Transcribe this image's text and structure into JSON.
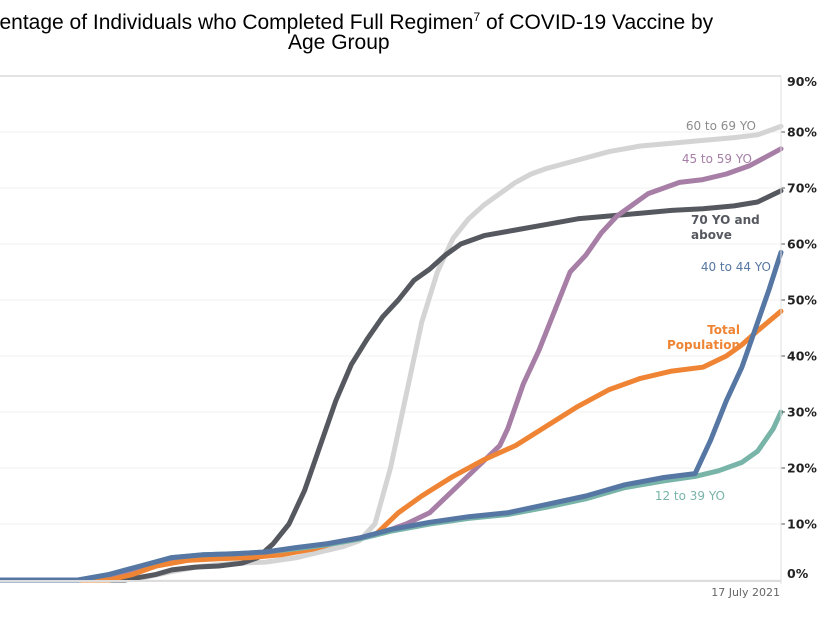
{
  "chart_data": {
    "type": "line",
    "title_line1_prefix": "rcentage of Individuals who Completed Full Regimen",
    "title_superscript": "7",
    "title_line1_suffix": " of COVID-19 Vaccine by",
    "title_line2": "Age Group",
    "xlabel": "",
    "ylabel": "",
    "x_end_label": "17 July 2021",
    "x_units": "relative time index (0 = left edge, 100 = 17 July 2021)",
    "xlim": [
      0,
      100
    ],
    "ylim": [
      0,
      90
    ],
    "yticks": [
      0,
      10,
      20,
      30,
      40,
      50,
      60,
      70,
      80,
      90
    ],
    "ytick_labels": [
      "0%",
      "10%",
      "20%",
      "30%",
      "40%",
      "50%",
      "60%",
      "70%",
      "80%",
      "90%"
    ],
    "y_axis_side": "right",
    "grid": true,
    "legend": "inline labels near line ends",
    "series": [
      {
        "name": "60 to 69 YO",
        "label": [
          "60 to 69 YO"
        ],
        "color": "#d4d4d4",
        "label_color": "#8c8c8c",
        "x": [
          0,
          15,
          18,
          22,
          26,
          30,
          34,
          38,
          41,
          44,
          46,
          48,
          50,
          52,
          54,
          56,
          58,
          60,
          62,
          64,
          66,
          68,
          70,
          74,
          78,
          82,
          86,
          90,
          94,
          97,
          100
        ],
        "y": [
          0,
          0,
          0.3,
          1.5,
          2.5,
          3,
          3.2,
          4,
          5,
          6,
          7,
          10,
          20,
          33,
          46,
          55,
          61,
          64.5,
          67,
          69,
          71,
          72.5,
          73.5,
          75,
          76.5,
          77.5,
          78,
          78.5,
          79,
          79.5,
          81
        ]
      },
      {
        "name": "45 to 59 YO",
        "label": [
          "45 to 59 YO"
        ],
        "color": "#a67ea6",
        "label_color": "#a67ea6",
        "x": [
          0,
          12,
          16,
          20,
          24,
          28,
          32,
          36,
          40,
          44,
          48,
          52,
          55,
          58,
          61,
          64,
          65,
          67,
          69,
          71,
          73,
          75,
          77,
          79,
          81,
          83,
          85,
          87,
          90,
          93,
          96,
          100
        ],
        "y": [
          0,
          0,
          1,
          2.5,
          4,
          4.5,
          4.7,
          5,
          6,
          7,
          8,
          10,
          12,
          16,
          20,
          24,
          27,
          35,
          41,
          48,
          55,
          58,
          62,
          65,
          67,
          69,
          70,
          71,
          71.5,
          72.5,
          74,
          77
        ]
      },
      {
        "name": "70 YO and above",
        "label": [
          "70 YO and",
          "above"
        ],
        "color": "#55595f",
        "label_color": "#55595f",
        "x": [
          0,
          16,
          18,
          20,
          22,
          25,
          28,
          31,
          33,
          35,
          37,
          39,
          41,
          43,
          45,
          47,
          49,
          51,
          53,
          55,
          57,
          59,
          62,
          66,
          70,
          74,
          78,
          82,
          86,
          90,
          94,
          97,
          100
        ],
        "y": [
          0,
          0,
          0.5,
          1,
          1.8,
          2.3,
          2.5,
          3,
          4,
          6.5,
          10,
          16,
          24,
          32,
          38.5,
          43,
          47,
          50,
          53.5,
          55.5,
          58,
          60,
          61.5,
          62.5,
          63.5,
          64.5,
          65,
          65.5,
          66,
          66.3,
          66.8,
          67.5,
          69.5
        ]
      },
      {
        "name": "40 to 44 YO",
        "label": [
          "40 to 44 YO"
        ],
        "color": "#5677a3",
        "label_color": "#5677a3",
        "x": [
          0,
          10,
          14,
          18,
          22,
          26,
          30,
          34,
          38,
          42,
          46,
          50,
          55,
          60,
          65,
          70,
          75,
          80,
          85,
          89,
          91,
          93,
          95,
          97,
          98.5,
          100
        ],
        "y": [
          0,
          0,
          1,
          2.5,
          4,
          4.5,
          4.7,
          5,
          5.8,
          6.5,
          7.5,
          9,
          10.3,
          11.3,
          12,
          13.5,
          15,
          17,
          18.3,
          19,
          25,
          32,
          38,
          46,
          52,
          58.5
        ]
      },
      {
        "name": "Total Population",
        "label": [
          "Total",
          "Population"
        ],
        "color": "#ee8434",
        "label_color": "#ee8434",
        "x": [
          0,
          14,
          17,
          20,
          24,
          28,
          32,
          36,
          40,
          44,
          48,
          51,
          54,
          58,
          62,
          66,
          70,
          74,
          78,
          82,
          86,
          90,
          93,
          95,
          97,
          100
        ],
        "y": [
          0,
          0,
          1,
          2.5,
          3.5,
          3.8,
          4,
          4.5,
          5.5,
          7,
          8,
          12,
          15,
          18.5,
          21.5,
          24,
          27.5,
          31,
          34,
          36,
          37.3,
          38,
          40,
          42,
          44.5,
          48
        ]
      },
      {
        "name": "12 to 39 YO",
        "label": [
          "12 to 39 YO"
        ],
        "color": "#79b4a9",
        "label_color": "#79b4a9",
        "x": [
          0,
          10,
          14,
          18,
          22,
          26,
          30,
          34,
          38,
          42,
          46,
          50,
          55,
          60,
          65,
          70,
          75,
          80,
          85,
          89,
          92,
          95,
          97,
          99,
          100
        ],
        "y": [
          0,
          0,
          1,
          2.5,
          4,
          4.5,
          4.7,
          5,
          5.6,
          6.3,
          7.3,
          8.7,
          10,
          11,
          11.7,
          13,
          14.5,
          16.5,
          17.7,
          18.5,
          19.5,
          21,
          23,
          27,
          30
        ]
      }
    ]
  }
}
